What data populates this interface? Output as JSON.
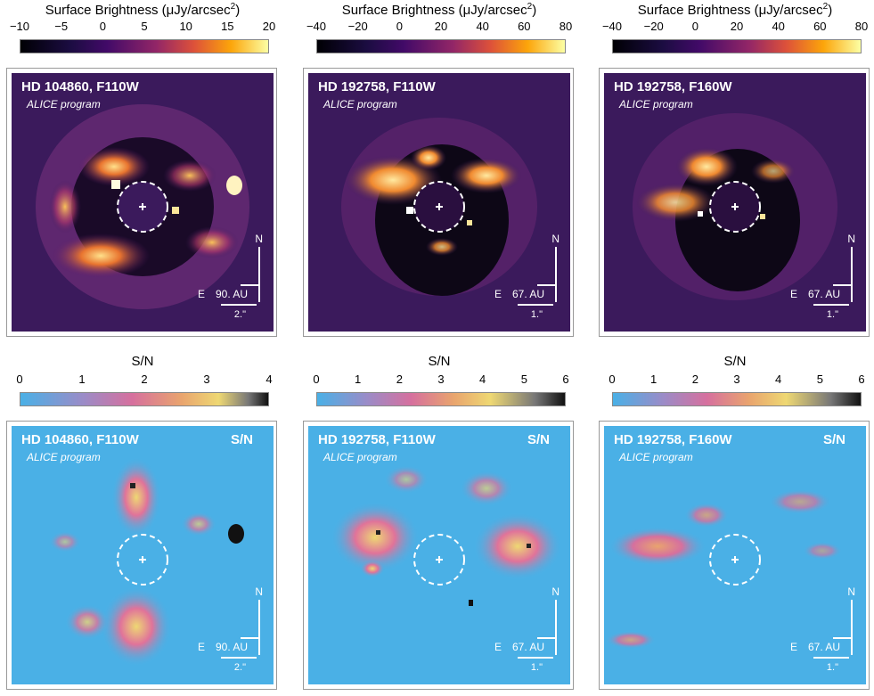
{
  "colorbars": {
    "top_title": "Surface Brightness (μJy/arcsec",
    "top_title_sup": "2",
    "top_title_end": ")",
    "sn_title": "S/N",
    "col1_top_ticks": [
      "−10",
      "−5",
      "0",
      "5",
      "10",
      "15",
      "20"
    ],
    "col23_top_ticks": [
      "−40",
      "−20",
      "0",
      "20",
      "40",
      "60",
      "80"
    ],
    "col1_sn_ticks": [
      "0",
      "1",
      "2",
      "3",
      "4"
    ],
    "col23_sn_ticks": [
      "0",
      "1",
      "2",
      "3",
      "4",
      "5",
      "6"
    ]
  },
  "panels": {
    "p1": {
      "title": "HD 104860, F110W",
      "subtitle": "ALICE program",
      "au": "90. AU",
      "arcsec": "2.\""
    },
    "p2": {
      "title": "HD 192758, F110W",
      "subtitle": "ALICE program",
      "au": "67. AU",
      "arcsec": "1.\""
    },
    "p3": {
      "title": "HD 192758, F160W",
      "subtitle": "ALICE program",
      "au": "67. AU",
      "arcsec": "1.\""
    }
  },
  "compass": {
    "north": "N",
    "east": "E"
  },
  "sn_label": "S/N",
  "colors": {
    "brightness_bg": "#3b1a5c",
    "sn_bg": "#4ab0e6",
    "inferno": [
      "#000004",
      "#420a68",
      "#932667",
      "#dd513a",
      "#fca50a",
      "#fcffa4"
    ],
    "sn_map": [
      "#4ab0e6",
      "#b77bb3",
      "#e0739a",
      "#e9b36a",
      "#f0d96a",
      "#555555",
      "#111111"
    ]
  }
}
